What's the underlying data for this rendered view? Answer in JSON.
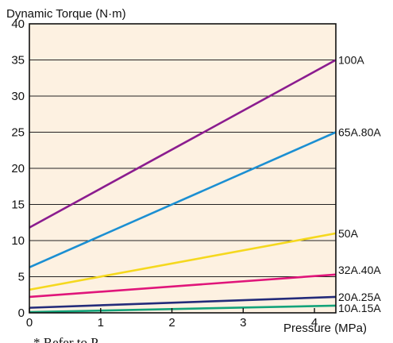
{
  "chart_data": {
    "type": "line",
    "ylabel": "Dynamic Torque (N·m)",
    "xlabel": "Pressure (MPa)",
    "footnote_fragment": "* Refer to P.",
    "xlim": [
      0,
      4.3
    ],
    "ylim": [
      0,
      40
    ],
    "x_ticks": [
      "0",
      "1",
      "2",
      "3",
      "4"
    ],
    "y_ticks": [
      "0",
      "5",
      "10",
      "15",
      "20",
      "25",
      "30",
      "35",
      "40"
    ],
    "grid": "horizontal",
    "series": [
      {
        "name": "100A",
        "color": "#8B1C8F",
        "x": [
          0,
          4.3
        ],
        "y": [
          11.8,
          35.0
        ]
      },
      {
        "name": "65A.80A",
        "color": "#1B8FD2",
        "x": [
          0,
          4.3
        ],
        "y": [
          6.3,
          25.0
        ]
      },
      {
        "name": "50A",
        "color": "#F5D81E",
        "x": [
          0,
          4.3
        ],
        "y": [
          3.2,
          11.0
        ]
      },
      {
        "name": "32A.40A",
        "color": "#E0157A",
        "x": [
          0,
          4.3
        ],
        "y": [
          2.2,
          5.3
        ]
      },
      {
        "name": "20A.25A",
        "color": "#232B7A",
        "x": [
          0,
          4.3
        ],
        "y": [
          0.7,
          2.2
        ]
      },
      {
        "name": "10A.15A",
        "color": "#14A37A",
        "x": [
          0,
          4.3
        ],
        "y": [
          0.1,
          1.0
        ]
      }
    ]
  }
}
